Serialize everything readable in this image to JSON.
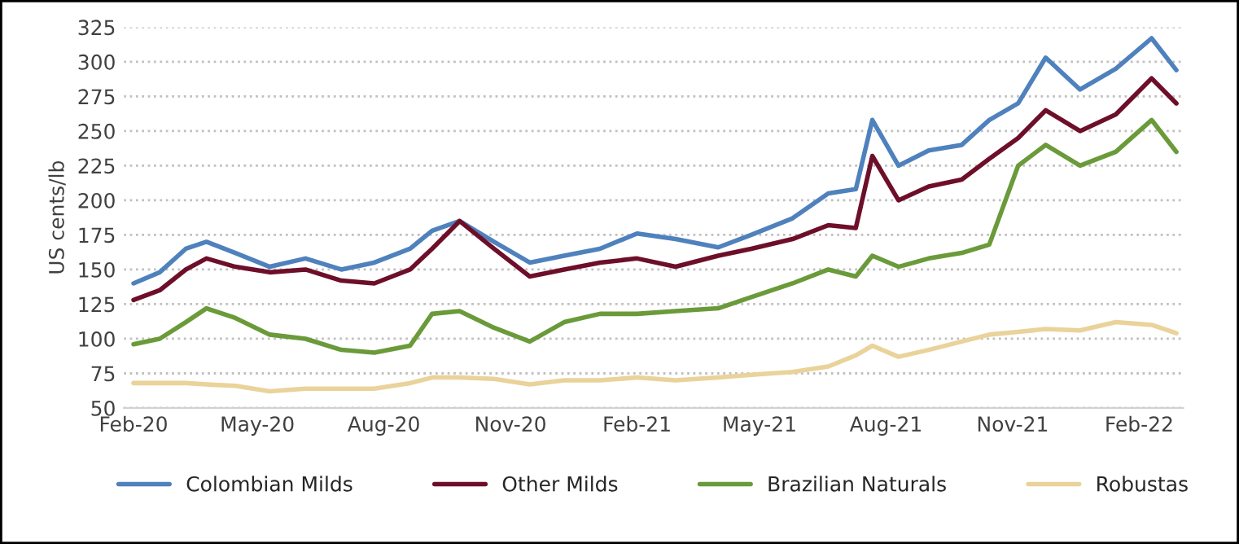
{
  "chart_data": {
    "type": "line",
    "ylabel": "US cents/lb",
    "x": [
      "2020-02-01",
      "2020-02-20",
      "2020-03-10",
      "2020-03-25",
      "2020-04-15",
      "2020-05-10",
      "2020-06-05",
      "2020-07-01",
      "2020-07-25",
      "2020-08-20",
      "2020-09-05",
      "2020-09-25",
      "2020-10-20",
      "2020-11-15",
      "2020-12-10",
      "2021-01-05",
      "2021-02-01",
      "2021-03-01",
      "2021-04-01",
      "2021-04-25",
      "2021-05-25",
      "2021-06-20",
      "2021-07-10",
      "2021-07-22",
      "2021-08-10",
      "2021-09-01",
      "2021-09-25",
      "2021-10-15",
      "2021-11-05",
      "2021-11-25",
      "2021-12-20",
      "2022-01-15",
      "2022-02-10",
      "2022-02-28"
    ],
    "series": [
      {
        "name": "Colombian Milds",
        "color": "#4f81bd",
        "values": [
          140,
          148,
          165,
          170,
          162,
          152,
          158,
          150,
          155,
          165,
          178,
          185,
          170,
          155,
          160,
          165,
          176,
          172,
          166,
          175,
          187,
          205,
          208,
          258,
          225,
          236,
          240,
          258,
          270,
          303,
          280,
          295,
          317,
          294
        ]
      },
      {
        "name": "Other Milds",
        "color": "#6e0f2a",
        "values": [
          128,
          135,
          150,
          158,
          152,
          148,
          150,
          142,
          140,
          150,
          165,
          185,
          165,
          145,
          150,
          155,
          158,
          152,
          160,
          165,
          172,
          182,
          180,
          232,
          200,
          210,
          215,
          230,
          245,
          265,
          250,
          262,
          288,
          270
        ]
      },
      {
        "name": "Brazilian Naturals",
        "color": "#6a9a3a",
        "values": [
          96,
          100,
          112,
          122,
          115,
          103,
          100,
          92,
          90,
          95,
          118,
          120,
          108,
          98,
          112,
          118,
          118,
          120,
          122,
          130,
          140,
          150,
          145,
          160,
          152,
          158,
          162,
          168,
          225,
          240,
          225,
          235,
          258,
          235
        ]
      },
      {
        "name": "Robustas",
        "color": "#ead39a",
        "values": [
          68,
          68,
          68,
          67,
          66,
          62,
          64,
          64,
          64,
          68,
          72,
          72,
          71,
          67,
          70,
          70,
          72,
          70,
          72,
          74,
          76,
          80,
          88,
          95,
          87,
          92,
          98,
          103,
          105,
          107,
          106,
          112,
          110,
          104
        ]
      }
    ],
    "xlim": [
      "2020-01-25",
      "2022-03-05"
    ],
    "xticks": [
      {
        "value": "2020-02-01",
        "label": "Feb-20"
      },
      {
        "value": "2020-05-01",
        "label": "May-20"
      },
      {
        "value": "2020-08-01",
        "label": "Aug-20"
      },
      {
        "value": "2020-11-01",
        "label": "Nov-20"
      },
      {
        "value": "2021-02-01",
        "label": "Feb-21"
      },
      {
        "value": "2021-05-01",
        "label": "May-21"
      },
      {
        "value": "2021-08-01",
        "label": "Aug-21"
      },
      {
        "value": "2021-11-01",
        "label": "Nov-21"
      },
      {
        "value": "2022-02-01",
        "label": "Feb-22"
      }
    ],
    "ylim": [
      50,
      325
    ],
    "yticks": [
      50,
      75,
      100,
      125,
      150,
      175,
      200,
      225,
      250,
      275,
      300,
      325
    ],
    "grid": "y",
    "legend": "bottom",
    "marker": "none",
    "line_style": "solid"
  }
}
